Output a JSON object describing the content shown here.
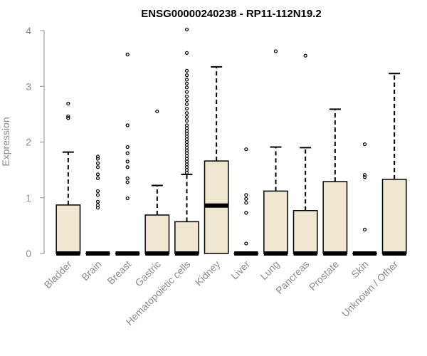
{
  "chart_data": {
    "type": "boxplot",
    "title": "ENSG00000240238 - RP11-112N19.2",
    "ylabel": "Expression",
    "xlabel": "",
    "ylim": [
      0,
      4
    ],
    "yticks": [
      0,
      1,
      2,
      3,
      4
    ],
    "grid": false,
    "box_fill": "#efe7cf",
    "categories": [
      "Bladder",
      "Brain",
      "Breast",
      "Gastric",
      "Hematopoietic cells",
      "Kidney",
      "Liver",
      "Lung",
      "Pancreas",
      "Prostate",
      "Skin",
      "Unknown / Other"
    ],
    "boxes": [
      {
        "category": "Bladder",
        "whisker_low": 0,
        "q1": 0,
        "median": 0,
        "q3": 0.87,
        "whisker_high": 1.82,
        "outliers": [
          2.43,
          2.46,
          2.69
        ]
      },
      {
        "category": "Brain",
        "whisker_low": 0,
        "q1": 0,
        "median": 0,
        "q3": 0,
        "whisker_high": 0,
        "outliers": [
          0.82,
          0.87,
          0.93,
          1.05,
          1.12,
          1.35,
          1.42,
          1.55,
          1.62,
          1.7,
          1.74
        ]
      },
      {
        "category": "Breast",
        "whisker_low": 0,
        "q1": 0,
        "median": 0,
        "q3": 0,
        "whisker_high": 0,
        "outliers": [
          0.99,
          1.28,
          1.35,
          1.55,
          1.65,
          1.8,
          1.91,
          2.3,
          3.57
        ]
      },
      {
        "category": "Gastric",
        "whisker_low": 0,
        "q1": 0,
        "median": 0,
        "q3": 0.69,
        "whisker_high": 1.22,
        "outliers": [
          2.55
        ]
      },
      {
        "category": "Hematopoietic cells",
        "whisker_low": 0,
        "q1": 0,
        "median": 0,
        "q3": 0.57,
        "whisker_high": 1.42,
        "outliers": [
          1.45,
          1.5,
          1.55,
          1.6,
          1.65,
          1.7,
          1.75,
          1.8,
          1.85,
          1.9,
          1.95,
          2.0,
          2.05,
          2.1,
          2.15,
          2.2,
          2.25,
          2.3,
          2.38,
          2.45,
          2.52,
          2.6,
          2.68,
          2.75,
          2.82,
          2.9,
          2.98,
          3.05,
          3.12,
          3.2,
          3.28,
          3.6,
          4.02
        ]
      },
      {
        "category": "Kidney",
        "whisker_low": 0,
        "q1": 0,
        "median": 0.86,
        "q3": 1.66,
        "whisker_high": 3.35,
        "outliers": []
      },
      {
        "category": "Liver",
        "whisker_low": 0,
        "q1": 0,
        "median": 0,
        "q3": 0,
        "whisker_high": 0,
        "outliers": [
          0.18,
          0.73,
          0.91,
          0.98,
          1.05,
          1.87
        ]
      },
      {
        "category": "Lung",
        "whisker_low": 0,
        "q1": 0,
        "median": 0,
        "q3": 1.12,
        "whisker_high": 1.91,
        "outliers": [
          3.63
        ]
      },
      {
        "category": "Pancreas",
        "whisker_low": 0,
        "q1": 0,
        "median": 0,
        "q3": 0.77,
        "whisker_high": 1.9,
        "outliers": [
          3.55
        ]
      },
      {
        "category": "Prostate",
        "whisker_low": 0,
        "q1": 0,
        "median": 0,
        "q3": 1.29,
        "whisker_high": 2.59,
        "outliers": []
      },
      {
        "category": "Skin",
        "whisker_low": 0,
        "q1": 0,
        "median": 0,
        "q3": 0,
        "whisker_high": 0,
        "outliers": [
          0.43,
          1.37,
          1.41,
          1.96
        ]
      },
      {
        "category": "Unknown / Other",
        "whisker_low": 0,
        "q1": 0,
        "median": 0,
        "q3": 1.33,
        "whisker_high": 3.23,
        "outliers": []
      }
    ]
  }
}
